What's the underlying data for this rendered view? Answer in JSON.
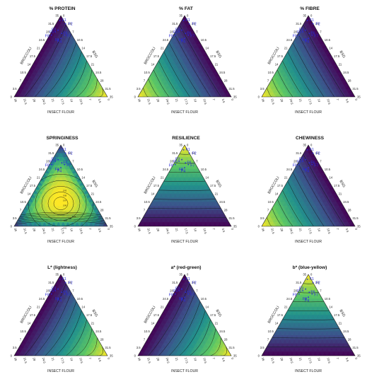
{
  "figure": {
    "axis_labels": {
      "left": "BROCCOLI",
      "right": "BSG",
      "bottom": "INSECT FLOUR"
    },
    "ticks": [
      "0",
      "3.5",
      "7",
      "10.5",
      "14",
      "17.5",
      "21",
      "24.5",
      "28",
      "31.5",
      "35"
    ],
    "colormap": [
      "#440154",
      "#3b528b",
      "#21918c",
      "#5ec962",
      "#fde725"
    ]
  },
  "chart_data": [
    {
      "type": "ternary-contour",
      "title": "% PROTEIN",
      "corner_high": "bottom-right",
      "formulations": [
        "F1",
        "F2",
        "F3",
        "F4",
        "F5",
        "F6",
        "F7",
        "F8",
        "F9"
      ],
      "contour_labels": []
    },
    {
      "type": "ternary-contour",
      "title": "% FAT",
      "corner_high": "bottom-left",
      "formulations": [
        "F1",
        "F2",
        "F3",
        "F4",
        "F5",
        "F6",
        "F7",
        "F8",
        "F9"
      ],
      "contour_labels": []
    },
    {
      "type": "ternary-contour",
      "title": "% FIBRE",
      "corner_high": "bottom-left",
      "formulations": [
        "F1",
        "F2",
        "F3",
        "F4",
        "F5",
        "F6",
        "F7",
        "F8",
        "F9"
      ],
      "contour_labels": []
    },
    {
      "type": "ternary-contour",
      "title": "SPRINGINESS",
      "corner_high": "center",
      "formulations": [
        "F1",
        "F2",
        "F3",
        "F4",
        "F5",
        "F6",
        "F7",
        "F8",
        "F9"
      ],
      "contour_labels": [
        "0.91",
        "0.93",
        "0.95",
        "0.97",
        "0.99",
        "0.97",
        "0.95",
        "0.93"
      ]
    },
    {
      "type": "ternary-contour",
      "title": "RESILIENCE",
      "corner_high": "top",
      "formulations": [
        "F1",
        "F2",
        "F3",
        "F4",
        "F5",
        "F6",
        "F7",
        "F8",
        "F9"
      ],
      "contour_labels": []
    },
    {
      "type": "ternary-contour",
      "title": "CHEWINESS",
      "corner_high": "bottom-left",
      "formulations": [
        "F1",
        "F2",
        "F3",
        "F4",
        "F5",
        "F6",
        "F7",
        "F8",
        "F9"
      ],
      "contour_labels": []
    },
    {
      "type": "ternary-contour",
      "title": "L* (lightness)",
      "corner_high": "bottom-right",
      "formulations": [
        "F1",
        "F2",
        "F3",
        "F4",
        "F5",
        "F6",
        "F7",
        "F8",
        "F9"
      ],
      "contour_labels": []
    },
    {
      "type": "ternary-contour",
      "title": "a* (red-green)",
      "corner_high": "bottom-right",
      "formulations": [
        "F1",
        "F2",
        "F3",
        "F4",
        "F5",
        "F6",
        "F7",
        "F8",
        "F9"
      ],
      "contour_labels": []
    },
    {
      "type": "ternary-contour",
      "title": "b* (blue-yellow)",
      "corner_high": "top",
      "formulations": [
        "F1",
        "F2",
        "F3",
        "F4",
        "F5",
        "F6",
        "F7",
        "F8",
        "F9"
      ],
      "contour_labels": []
    }
  ]
}
